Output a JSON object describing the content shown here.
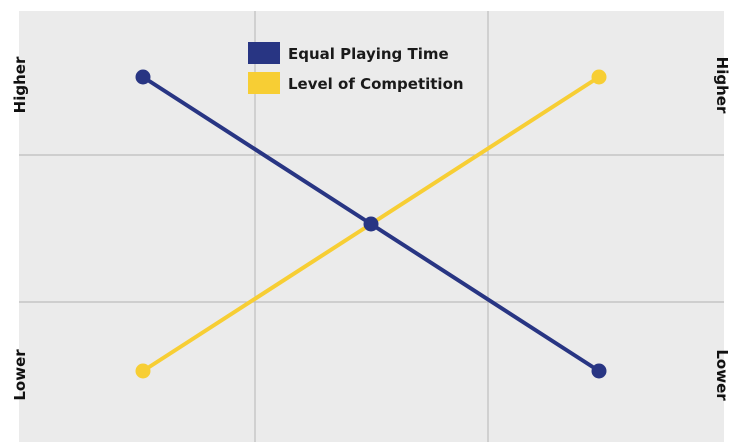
{
  "chart_data": {
    "type": "line",
    "title": "",
    "xlabel": "",
    "ylabel": "",
    "x": [
      0,
      1,
      2
    ],
    "ylim": [
      0,
      1
    ],
    "grid": true,
    "legend_position": "top-center",
    "left_axis": {
      "top_label": "Higher",
      "bottom_label": "Lower"
    },
    "right_axis": {
      "top_label": "Higher",
      "bottom_label": "Lower"
    },
    "series": [
      {
        "name": "Equal Playing Time",
        "color": "#283583",
        "values": [
          1,
          0.5,
          0
        ]
      },
      {
        "name": "Level of Competition",
        "color": "#F7CE34",
        "values": [
          0,
          0.5,
          1
        ]
      }
    ]
  },
  "colors": {
    "plot_background": "#EBEBEB",
    "grid": "#BDBDBD"
  }
}
